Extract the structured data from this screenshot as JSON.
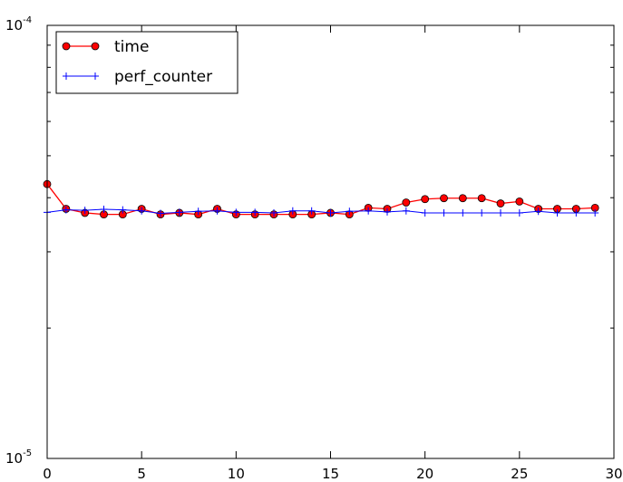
{
  "chart_data": {
    "type": "line",
    "yscale": "log",
    "xlim": [
      0,
      30
    ],
    "ylim": [
      1e-05,
      0.0001
    ],
    "grid": false,
    "legend_position": "top-left",
    "x_ticks": [
      0,
      5,
      10,
      15,
      20,
      25,
      30
    ],
    "x_tick_labels": [
      "0",
      "5",
      "10",
      "15",
      "20",
      "25",
      "30"
    ],
    "y_ticks": [
      {
        "value": 1e-05,
        "base": "10",
        "exponent": "-5"
      },
      {
        "value": 0.0001,
        "base": "10",
        "exponent": "-4"
      }
    ],
    "x": [
      0,
      1,
      2,
      3,
      4,
      5,
      6,
      7,
      8,
      9,
      10,
      11,
      12,
      13,
      14,
      15,
      16,
      17,
      18,
      19,
      20,
      21,
      22,
      23,
      24,
      25,
      26,
      27,
      28,
      29
    ],
    "series": [
      {
        "name": "time",
        "color": "#ff0000",
        "marker": "circle",
        "values": [
          4.3e-05,
          3.77e-05,
          3.69e-05,
          3.66e-05,
          3.66e-05,
          3.77e-05,
          3.66e-05,
          3.69e-05,
          3.66e-05,
          3.77e-05,
          3.66e-05,
          3.66e-05,
          3.66e-05,
          3.66e-05,
          3.66e-05,
          3.69e-05,
          3.66e-05,
          3.79e-05,
          3.77e-05,
          3.9e-05,
          3.97e-05,
          3.99e-05,
          3.99e-05,
          3.99e-05,
          3.88e-05,
          3.92e-05,
          3.77e-05,
          3.77e-05,
          3.77e-05,
          3.79e-05
        ]
      },
      {
        "name": "perf_counter",
        "color": "#0000ff",
        "marker": "plus",
        "values": [
          3.7e-05,
          3.75e-05,
          3.74e-05,
          3.76e-05,
          3.75e-05,
          3.73e-05,
          3.68e-05,
          3.7e-05,
          3.72e-05,
          3.73e-05,
          3.7e-05,
          3.7e-05,
          3.69e-05,
          3.73e-05,
          3.73e-05,
          3.69e-05,
          3.72e-05,
          3.73e-05,
          3.71e-05,
          3.73e-05,
          3.69e-05,
          3.69e-05,
          3.69e-05,
          3.69e-05,
          3.69e-05,
          3.69e-05,
          3.72e-05,
          3.69e-05,
          3.69e-05,
          3.69e-05
        ]
      }
    ]
  }
}
